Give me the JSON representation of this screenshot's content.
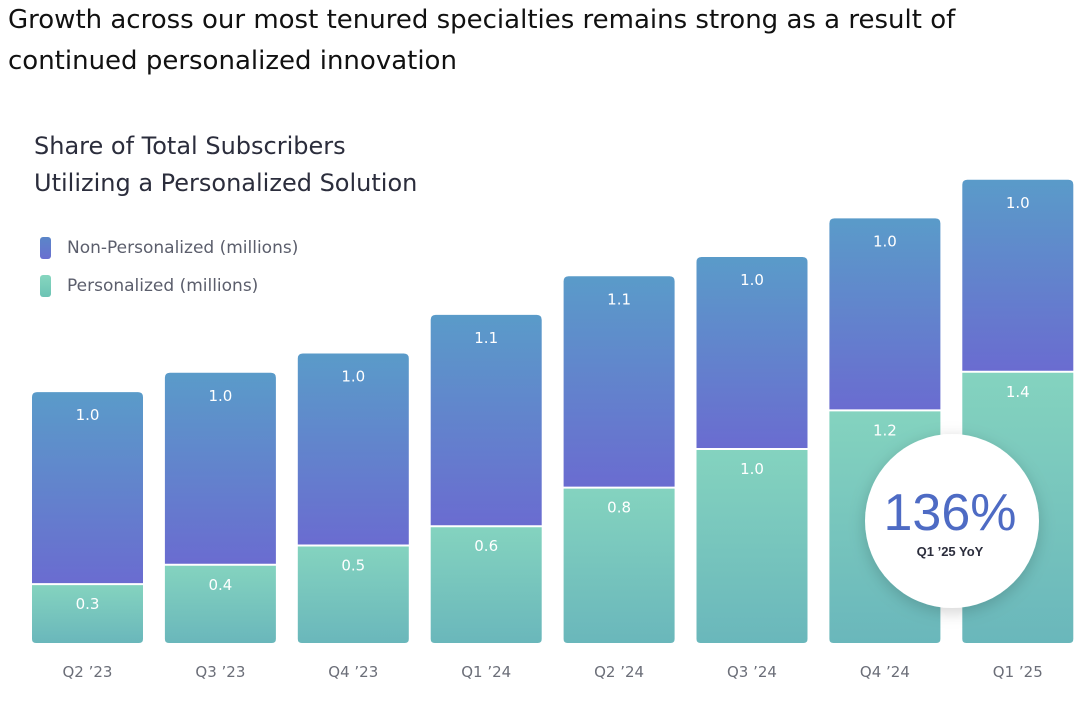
{
  "headline": "Growth across our most tenured specialties remains strong as a result of continued personalized innovation",
  "chart_data": {
    "type": "bar",
    "stacked": true,
    "title_line1": "Share of Total Subscribers",
    "title_line2": "Utilizing a Personalized Solution",
    "categories": [
      "Q2 ’23",
      "Q3 ’23",
      "Q4 ’23",
      "Q1 ’24",
      "Q2 ’24",
      "Q3 ’24",
      "Q4 ’24",
      "Q1 ’25"
    ],
    "series": [
      {
        "name": "Personalized (millions)",
        "values": [
          0.3,
          0.4,
          0.5,
          0.6,
          0.8,
          1.0,
          1.2,
          1.4
        ],
        "color": "#7fd1bf"
      },
      {
        "name": "Non-Personalized (millions)",
        "values": [
          1.0,
          1.0,
          1.0,
          1.1,
          1.1,
          1.0,
          1.0,
          1.0
        ],
        "color": "#6176cc"
      }
    ],
    "ylim": [
      0,
      2.4
    ],
    "grid": false,
    "legend_position": "top-left",
    "annotation": {
      "value": "136%",
      "label": "Q1 ’25 YoY"
    }
  },
  "colors": {
    "np_top": "#5a9bc9",
    "np_bottom": "#6a6cd0",
    "p_top": "#84d3bf",
    "p_bottom": "#6ab7bb"
  }
}
